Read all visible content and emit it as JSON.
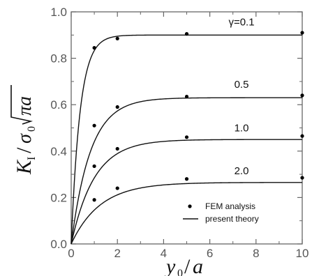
{
  "chart_data": {
    "type": "line",
    "title": "",
    "xlabel": "y0/a",
    "ylabel": "KI/σ0√πa",
    "xlim": [
      0,
      10
    ],
    "ylim": [
      0,
      1.0
    ],
    "xticks": [
      0,
      2,
      4,
      6,
      8,
      10
    ],
    "yticks": [
      0.0,
      0.2,
      0.4,
      0.6,
      0.8,
      1.0
    ],
    "ytick_labels": [
      "0.0",
      "0.2",
      "0.4",
      "0.6",
      "0.8",
      "1.0"
    ],
    "grid": false,
    "legend": {
      "placement": "bottom-right",
      "entries": [
        {
          "label": "FEM analysis",
          "marker": "dot"
        },
        {
          "label": "present theory",
          "marker": "line"
        }
      ]
    },
    "series": [
      {
        "name": "γ=0.1",
        "label": "γ=0.1",
        "theory": {
          "asymptote": 0.9,
          "rate": 2.6
        },
        "fem": {
          "x": [
            1,
            2,
            5,
            10
          ],
          "y": [
            0.845,
            0.885,
            0.905,
            0.91
          ]
        }
      },
      {
        "name": "0.5",
        "label": "0.5",
        "theory": {
          "asymptote": 0.63,
          "rate": 1.2
        },
        "fem": {
          "x": [
            1,
            2,
            5,
            10
          ],
          "y": [
            0.51,
            0.59,
            0.635,
            0.64
          ]
        }
      },
      {
        "name": "1.0",
        "label": "1.0",
        "theory": {
          "asymptote": 0.45,
          "rate": 1.0
        },
        "fem": {
          "x": [
            1,
            2,
            5,
            10
          ],
          "y": [
            0.335,
            0.41,
            0.46,
            0.465
          ]
        }
      },
      {
        "name": "2.0",
        "label": "2.0",
        "theory": {
          "asymptote": 0.265,
          "rate": 0.8
        },
        "fem": {
          "x": [
            1,
            2,
            5,
            10
          ],
          "y": [
            0.19,
            0.24,
            0.28,
            0.285
          ]
        }
      }
    ],
    "colors": {
      "axis": "#666666",
      "curve": "#111111",
      "marker": "#000000"
    }
  }
}
